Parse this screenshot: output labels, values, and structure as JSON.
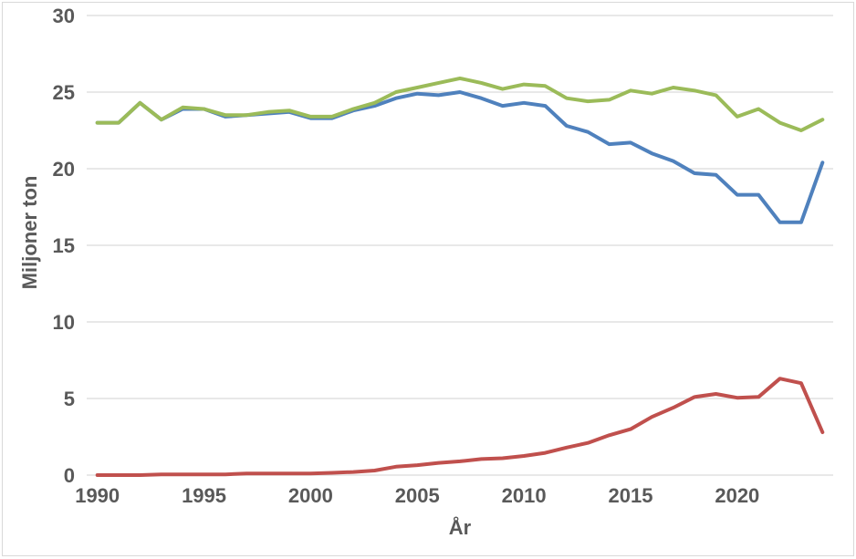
{
  "styles": {
    "background": "#FFFFFF",
    "grid_color": "#D9D9D9",
    "border_color": "#D9D9D9",
    "text_color": "#595959"
  },
  "chart_data": {
    "type": "line",
    "title": "",
    "xlabel": "År",
    "ylabel": "Miljoner ton",
    "x": [
      1990,
      1991,
      1992,
      1993,
      1994,
      1995,
      1996,
      1997,
      1998,
      1999,
      2000,
      2001,
      2002,
      2003,
      2004,
      2005,
      2006,
      2007,
      2008,
      2009,
      2010,
      2011,
      2012,
      2013,
      2014,
      2015,
      2016,
      2017,
      2018,
      2019,
      2020,
      2021,
      2022,
      2023,
      2024
    ],
    "xticks": [
      1990,
      1995,
      2000,
      2005,
      2010,
      2015,
      2020
    ],
    "yticks": [
      0,
      5,
      10,
      15,
      20,
      25,
      30
    ],
    "ylim": [
      0,
      30
    ],
    "grid": true,
    "legend_position": "none",
    "series": [
      {
        "id": "blue",
        "color": "#4F81BD",
        "values": [
          23.0,
          23.0,
          24.3,
          23.2,
          23.9,
          23.9,
          23.4,
          23.5,
          23.6,
          23.7,
          23.3,
          23.3,
          23.8,
          24.1,
          24.6,
          24.9,
          24.8,
          25.0,
          24.6,
          24.1,
          24.3,
          24.1,
          22.8,
          22.4,
          21.6,
          21.7,
          21.0,
          20.5,
          19.7,
          19.6,
          18.3,
          18.3,
          16.5,
          16.5,
          20.4
        ]
      },
      {
        "id": "green",
        "color": "#9BBB59",
        "values": [
          23.0,
          23.0,
          24.3,
          23.2,
          24.0,
          23.9,
          23.5,
          23.5,
          23.7,
          23.8,
          23.4,
          23.4,
          23.9,
          24.3,
          25.0,
          25.3,
          25.6,
          25.9,
          25.6,
          25.2,
          25.5,
          25.4,
          24.6,
          24.4,
          24.5,
          25.1,
          24.9,
          25.3,
          25.1,
          24.8,
          23.4,
          23.9,
          23.0,
          22.5,
          23.2
        ]
      },
      {
        "id": "red",
        "color": "#C0504D",
        "values": [
          0.0,
          0.0,
          0.0,
          0.05,
          0.05,
          0.05,
          0.05,
          0.1,
          0.1,
          0.1,
          0.1,
          0.15,
          0.2,
          0.3,
          0.55,
          0.65,
          0.8,
          0.9,
          1.05,
          1.1,
          1.25,
          1.45,
          1.8,
          2.1,
          2.6,
          3.0,
          3.8,
          4.4,
          5.1,
          5.3,
          5.05,
          5.1,
          6.3,
          6.0,
          2.8
        ]
      }
    ]
  }
}
